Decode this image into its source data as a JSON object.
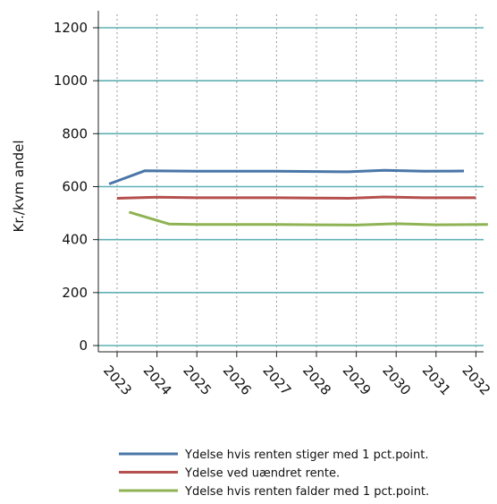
{
  "chart_data": {
    "type": "line",
    "ylabel": "Kr./kvm andel",
    "xlabel": "",
    "title": "",
    "ylim": [
      0,
      1250
    ],
    "yticks": [
      0,
      200,
      400,
      600,
      800,
      1000,
      1200
    ],
    "xticks": [
      "2023",
      "2024",
      "2025",
      "2026",
      "2027",
      "2028",
      "2029",
      "2030",
      "2031",
      "2032"
    ],
    "grid": {
      "horizontal": true,
      "vertical": "dotted"
    },
    "legend_position": "bottom",
    "series": [
      {
        "name": "Ydelse hvis renten stiger med 1 pct.point.",
        "color": "#4a76a8",
        "points": [
          {
            "x": 2022.8,
            "y": 610
          },
          {
            "x": 2023.7,
            "y": 660
          },
          {
            "x": 2025.0,
            "y": 658
          },
          {
            "x": 2026.0,
            "y": 658
          },
          {
            "x": 2027.0,
            "y": 658
          },
          {
            "x": 2028.0,
            "y": 657
          },
          {
            "x": 2028.8,
            "y": 656
          },
          {
            "x": 2029.7,
            "y": 662
          },
          {
            "x": 2030.7,
            "y": 658
          },
          {
            "x": 2031.7,
            "y": 659
          }
        ]
      },
      {
        "name": "Ydelse ved uændret rente.",
        "color": "#b5504e",
        "points": [
          {
            "x": 2023.0,
            "y": 556
          },
          {
            "x": 2024.0,
            "y": 560
          },
          {
            "x": 2025.0,
            "y": 558
          },
          {
            "x": 2026.0,
            "y": 558
          },
          {
            "x": 2027.0,
            "y": 558
          },
          {
            "x": 2028.0,
            "y": 557
          },
          {
            "x": 2028.8,
            "y": 556
          },
          {
            "x": 2029.7,
            "y": 561
          },
          {
            "x": 2030.7,
            "y": 558
          },
          {
            "x": 2032.0,
            "y": 558
          }
        ]
      },
      {
        "name": "Ydelse hvis renten falder med 1 pct.point.",
        "color": "#8fb354",
        "points": [
          {
            "x": 2023.3,
            "y": 504
          },
          {
            "x": 2024.3,
            "y": 459
          },
          {
            "x": 2025.0,
            "y": 457
          },
          {
            "x": 2026.0,
            "y": 457
          },
          {
            "x": 2027.0,
            "y": 457
          },
          {
            "x": 2028.0,
            "y": 456
          },
          {
            "x": 2029.0,
            "y": 455
          },
          {
            "x": 2030.0,
            "y": 460
          },
          {
            "x": 2031.0,
            "y": 456
          },
          {
            "x": 2032.3,
            "y": 457
          }
        ]
      }
    ]
  }
}
